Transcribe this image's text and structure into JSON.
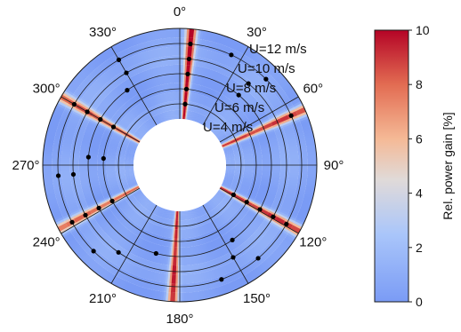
{
  "chart_data": {
    "type": "heatmap",
    "projection": "polar",
    "angle_labels": [
      "0°",
      "30°",
      "60°",
      "90°",
      "120°",
      "150°",
      "180°",
      "210°",
      "240°",
      "270°",
      "300°",
      "330°"
    ],
    "angle_ticks_deg": [
      0,
      30,
      60,
      90,
      120,
      150,
      180,
      210,
      240,
      270,
      300,
      330
    ],
    "angular_direction": "clockwise from top",
    "radial_levels": [
      {
        "value": 4,
        "label": "U=4 m/s"
      },
      {
        "value": 6,
        "label": "U=6 m/s"
      },
      {
        "value": 8,
        "label": "U=8 m/s"
      },
      {
        "value": 10,
        "label": "U=10 m/s"
      },
      {
        "value": 12,
        "label": "U=12 m/s"
      }
    ],
    "radial_unit": "m/s",
    "radial_range": [
      2,
      14
    ],
    "gain_bands": [
      {
        "direction_deg": 5,
        "peak_gain_pct": 10
      },
      {
        "direction_deg": 66,
        "peak_gain_pct": 9
      },
      {
        "direction_deg": 119,
        "peak_gain_pct": 9
      },
      {
        "direction_deg": 183,
        "peak_gain_pct": 9
      },
      {
        "direction_deg": 242,
        "peak_gain_pct": 8
      },
      {
        "direction_deg": 300,
        "peak_gain_pct": 8
      }
    ],
    "background_gain_pct": 0.6,
    "optimal_points": [
      {
        "direction_deg": 5,
        "wind_speed": 4
      },
      {
        "direction_deg": 5,
        "wind_speed": 6
      },
      {
        "direction_deg": 5,
        "wind_speed": 8
      },
      {
        "direction_deg": 5,
        "wind_speed": 10
      },
      {
        "direction_deg": 5,
        "wind_speed": 12
      },
      {
        "direction_deg": 66,
        "wind_speed": 12
      },
      {
        "direction_deg": 119,
        "wind_speed": 4
      },
      {
        "direction_deg": 119,
        "wind_speed": 6
      },
      {
        "direction_deg": 119,
        "wind_speed": 8
      },
      {
        "direction_deg": 119,
        "wind_speed": 10
      },
      {
        "direction_deg": 119,
        "wind_speed": 12
      },
      {
        "direction_deg": 242,
        "wind_speed": 6
      },
      {
        "direction_deg": 242,
        "wind_speed": 8
      },
      {
        "direction_deg": 242,
        "wind_speed": 10
      },
      {
        "direction_deg": 242,
        "wind_speed": 12
      },
      {
        "direction_deg": 300,
        "wind_speed": 6
      },
      {
        "direction_deg": 300,
        "wind_speed": 8
      },
      {
        "direction_deg": 300,
        "wind_speed": 10
      },
      {
        "direction_deg": 300,
        "wind_speed": 12
      },
      {
        "direction_deg": 275,
        "wind_speed": 6
      },
      {
        "direction_deg": 275,
        "wind_speed": 8
      },
      {
        "direction_deg": 265,
        "wind_speed": 10
      },
      {
        "direction_deg": 265,
        "wind_speed": 12
      },
      {
        "direction_deg": 25,
        "wind_speed": 12
      },
      {
        "direction_deg": 40,
        "wind_speed": 10
      },
      {
        "direction_deg": 45,
        "wind_speed": 12
      },
      {
        "direction_deg": 40,
        "wind_speed": 8
      },
      {
        "direction_deg": 325,
        "wind_speed": 8
      },
      {
        "direction_deg": 330,
        "wind_speed": 10
      },
      {
        "direction_deg": 330,
        "wind_speed": 12
      },
      {
        "direction_deg": 160,
        "wind_speed": 12
      },
      {
        "direction_deg": 150,
        "wind_speed": 10
      },
      {
        "direction_deg": 145,
        "wind_speed": 8
      },
      {
        "direction_deg": 215,
        "wind_speed": 10
      },
      {
        "direction_deg": 225,
        "wind_speed": 12
      },
      {
        "direction_deg": 140,
        "wind_speed": 12
      },
      {
        "direction_deg": 195,
        "wind_speed": 8
      }
    ],
    "colorbar": {
      "label": "Rel. power gain [%]",
      "ticks": [
        0,
        2,
        4,
        6,
        8,
        10
      ],
      "tick_labels": [
        "0",
        "2",
        "4",
        "6",
        "8",
        "10"
      ],
      "range": [
        0,
        10
      ],
      "colormap": "coolwarm"
    },
    "grid": true
  }
}
